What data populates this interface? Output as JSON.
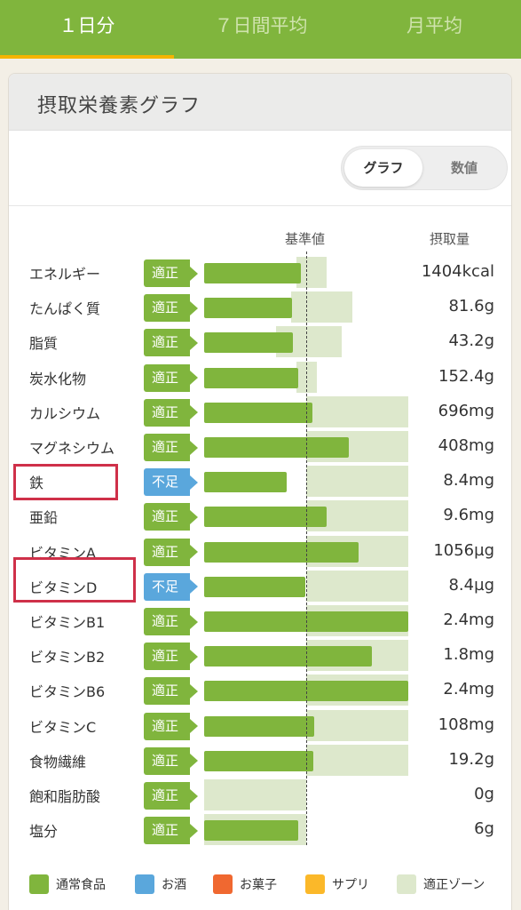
{
  "tabs": [
    {
      "label": "１日分",
      "active": true
    },
    {
      "label": "７日間平均",
      "active": false
    },
    {
      "label": "月平均",
      "active": false
    }
  ],
  "card": {
    "title": "摂取栄養素グラフ"
  },
  "toggle": {
    "graph": "グラフ",
    "numeric": "数値",
    "selected": "graph"
  },
  "columns": {
    "reference": "基準値",
    "intake": "摂取量"
  },
  "nutrients": [
    {
      "label": "エネルギー",
      "status": "適正",
      "level": "ok",
      "intake_ratio": 0.95,
      "zone": [
        0.9,
        1.2
      ],
      "value": "1404kcal"
    },
    {
      "label": "たんぱく質",
      "status": "適正",
      "level": "ok",
      "intake_ratio": 0.86,
      "zone": [
        0.85,
        1.45
      ],
      "value": "81.6g"
    },
    {
      "label": "脂質",
      "status": "適正",
      "level": "ok",
      "intake_ratio": 0.87,
      "zone": [
        0.7,
        1.35
      ],
      "value": "43.2g"
    },
    {
      "label": "炭水化物",
      "status": "適正",
      "level": "ok",
      "intake_ratio": 0.92,
      "zone": [
        0.9,
        1.1
      ],
      "value": "152.4g"
    },
    {
      "label": "カルシウム",
      "status": "適正",
      "level": "ok",
      "intake_ratio": 1.06,
      "zone": [
        1.0,
        2.0
      ],
      "value": "696mg"
    },
    {
      "label": "マグネシウム",
      "status": "適正",
      "level": "ok",
      "intake_ratio": 1.42,
      "zone": [
        1.0,
        2.0
      ],
      "value": "408mg"
    },
    {
      "label": "鉄",
      "status": "不足",
      "level": "low",
      "intake_ratio": 0.81,
      "zone": [
        1.0,
        2.0
      ],
      "value": "8.4mg"
    },
    {
      "label": "亜鉛",
      "status": "適正",
      "level": "ok",
      "intake_ratio": 1.2,
      "zone": [
        1.0,
        2.0
      ],
      "value": "9.6mg"
    },
    {
      "label": "ビタミンA",
      "status": "適正",
      "level": "ok",
      "intake_ratio": 1.51,
      "zone": [
        1.0,
        2.0
      ],
      "value": "1056µg"
    },
    {
      "label": "ビタミンD",
      "status": "不足",
      "level": "low",
      "intake_ratio": 0.99,
      "zone": [
        1.0,
        2.0
      ],
      "value": "8.4µg"
    },
    {
      "label": "ビタミンB1",
      "status": "適正",
      "level": "ok",
      "intake_ratio": 2.0,
      "zone": [
        1.0,
        2.0
      ],
      "value": "2.4mg"
    },
    {
      "label": "ビタミンB2",
      "status": "適正",
      "level": "ok",
      "intake_ratio": 1.64,
      "zone": [
        1.0,
        2.0
      ],
      "value": "1.8mg"
    },
    {
      "label": "ビタミンB6",
      "status": "適正",
      "level": "ok",
      "intake_ratio": 2.0,
      "zone": [
        1.0,
        2.0
      ],
      "value": "2.4mg"
    },
    {
      "label": "ビタミンC",
      "status": "適正",
      "level": "ok",
      "intake_ratio": 1.08,
      "zone": [
        1.0,
        2.0
      ],
      "value": "108mg"
    },
    {
      "label": "食物繊維",
      "status": "適正",
      "level": "ok",
      "intake_ratio": 1.07,
      "zone": [
        1.0,
        2.0
      ],
      "value": "19.2g"
    },
    {
      "label": "飽和脂肪酸",
      "status": "適正",
      "level": "ok",
      "intake_ratio": 0.0,
      "zone": [
        0.0,
        1.0
      ],
      "value": "0g"
    },
    {
      "label": "塩分",
      "status": "適正",
      "level": "ok",
      "intake_ratio": 0.92,
      "zone": [
        0.0,
        1.0
      ],
      "value": "6g"
    }
  ],
  "highlighted_nutrients": [
    "鉄",
    "ビタミンD"
  ],
  "legend": [
    {
      "label": "通常食品",
      "color": "#80b53d"
    },
    {
      "label": "お酒",
      "color": "#5aa7dc"
    },
    {
      "label": "お菓子",
      "color": "#f06830"
    },
    {
      "label": "サプリ",
      "color": "#fbb829"
    },
    {
      "label": "適正ゾーン",
      "color": "#dde8cc"
    }
  ],
  "colors": {
    "accent": "#80b53d",
    "tab_indicator": "#f5b400",
    "shortage": "#5aa7dc",
    "highlight": "#cf3049"
  }
}
